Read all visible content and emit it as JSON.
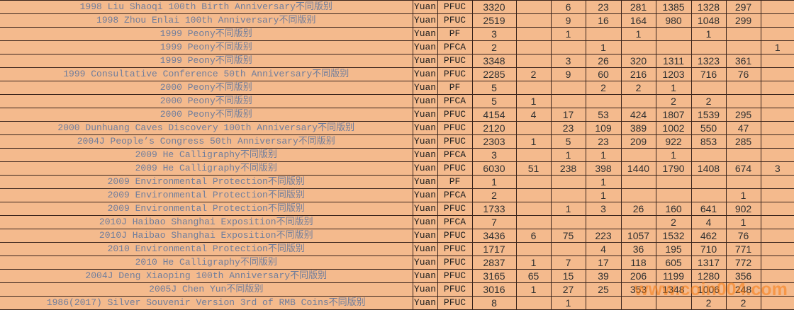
{
  "theme": {
    "background_color": "#F4BA8D",
    "grid_line_color": "#3A241C",
    "description_text_color": "#6F7D9C",
    "number_text_color": "#303030",
    "watermark_color": "#F77609"
  },
  "watermark": {
    "text": "www.coin004.com"
  },
  "table": {
    "column_roles": [
      "description",
      "currency",
      "grade",
      "v1",
      "v2",
      "v3",
      "v4",
      "v5",
      "v6",
      "v7",
      "v8",
      "v9"
    ],
    "rows": [
      {
        "description": "1998 Liu Shaoqi 100th Birth Anniversary不同版别",
        "currency": "Yuan",
        "grade": "PFUC",
        "values": [
          "3320",
          "",
          "6",
          "23",
          "281",
          "1385",
          "1328",
          "297",
          ""
        ]
      },
      {
        "description": "1998 Zhou Enlai 100th Anniversary不同版别",
        "currency": "Yuan",
        "grade": "PFUC",
        "values": [
          "2519",
          "",
          "9",
          "16",
          "164",
          "980",
          "1048",
          "299",
          ""
        ]
      },
      {
        "description": "1999 Peony不同版别",
        "currency": "Yuan",
        "grade": "PF",
        "values": [
          "3",
          "",
          "1",
          "",
          "1",
          "",
          "1",
          "",
          ""
        ]
      },
      {
        "description": "1999 Peony不同版别",
        "currency": "Yuan",
        "grade": "PFCA",
        "values": [
          "2",
          "",
          "",
          "1",
          "",
          "",
          "",
          "",
          "1"
        ]
      },
      {
        "description": "1999 Peony不同版别",
        "currency": "Yuan",
        "grade": "PFUC",
        "values": [
          "3348",
          "",
          "3",
          "26",
          "320",
          "1311",
          "1323",
          "361",
          ""
        ]
      },
      {
        "description": "1999 Consultative Conference 50th Anniversary不同版别",
        "currency": "Yuan",
        "grade": "PFUC",
        "values": [
          "2285",
          "2",
          "9",
          "60",
          "216",
          "1203",
          "716",
          "76",
          ""
        ]
      },
      {
        "description": "2000 Peony不同版别",
        "currency": "Yuan",
        "grade": "PF",
        "values": [
          "5",
          "",
          "",
          "2",
          "2",
          "1",
          "",
          "",
          ""
        ]
      },
      {
        "description": "2000 Peony不同版别",
        "currency": "Yuan",
        "grade": "PFCA",
        "values": [
          "5",
          "1",
          "",
          "",
          "",
          "2",
          "2",
          "",
          ""
        ]
      },
      {
        "description": "2000 Peony不同版别",
        "currency": "Yuan",
        "grade": "PFUC",
        "values": [
          "4154",
          "4",
          "17",
          "53",
          "424",
          "1807",
          "1539",
          "295",
          ""
        ]
      },
      {
        "description": "2000 Dunhuang Caves Discovery 100th Anniversary不同版别",
        "currency": "Yuan",
        "grade": "PFUC",
        "values": [
          "2120",
          "",
          "23",
          "109",
          "389",
          "1002",
          "550",
          "47",
          ""
        ]
      },
      {
        "description": "2004J People’s Congress 50th Anniversary不同版别",
        "currency": "Yuan",
        "grade": "PFUC",
        "values": [
          "2303",
          "1",
          "5",
          "23",
          "209",
          "922",
          "853",
          "285",
          ""
        ]
      },
      {
        "description": "2009 He Calligraphy不同版别",
        "currency": "Yuan",
        "grade": "PFCA",
        "values": [
          "3",
          "",
          "1",
          "1",
          "",
          "1",
          "",
          "",
          ""
        ]
      },
      {
        "description": "2009 He Calligraphy不同版别",
        "currency": "Yuan",
        "grade": "PFUC",
        "values": [
          "6030",
          "51",
          "238",
          "398",
          "1440",
          "1790",
          "1408",
          "674",
          "3"
        ]
      },
      {
        "description": "2009 Environmental Protection不同版别",
        "currency": "Yuan",
        "grade": "PF",
        "values": [
          "1",
          "",
          "",
          "1",
          "",
          "",
          "",
          "",
          ""
        ]
      },
      {
        "description": "2009 Environmental Protection不同版别",
        "currency": "Yuan",
        "grade": "PFCA",
        "values": [
          "2",
          "",
          "",
          "1",
          "",
          "",
          "",
          "1",
          ""
        ]
      },
      {
        "description": "2009 Environmental Protection不同版别",
        "currency": "Yuan",
        "grade": "PFUC",
        "values": [
          "1733",
          "",
          "1",
          "3",
          "26",
          "160",
          "641",
          "902",
          ""
        ]
      },
      {
        "description": "2010J Haibao Shanghai Exposition不同版别",
        "currency": "Yuan",
        "grade": "PFCA",
        "values": [
          "7",
          "",
          "",
          "",
          "",
          "2",
          "4",
          "1",
          ""
        ]
      },
      {
        "description": "2010J Haibao Shanghai Exposition不同版别",
        "currency": "Yuan",
        "grade": "PFUC",
        "values": [
          "3436",
          "6",
          "75",
          "223",
          "1057",
          "1532",
          "462",
          "76",
          ""
        ]
      },
      {
        "description": "2010 Environmental Protection不同版别",
        "currency": "Yuan",
        "grade": "PFUC",
        "values": [
          "1717",
          "",
          "",
          "4",
          "36",
          "195",
          "710",
          "771",
          ""
        ]
      },
      {
        "description": "2010 He Calligraphy不同版别",
        "currency": "Yuan",
        "grade": "PFUC",
        "values": [
          "2837",
          "1",
          "7",
          "17",
          "118",
          "605",
          "1317",
          "772",
          ""
        ]
      },
      {
        "description": "2004J Deng Xiaoping 100th Anniversary不同版别",
        "currency": "Yuan",
        "grade": "PFUC",
        "values": [
          "3165",
          "65",
          "15",
          "39",
          "206",
          "1199",
          "1280",
          "356",
          ""
        ]
      },
      {
        "description": "2005J Chen Yun不同版别",
        "currency": "Yuan",
        "grade": "PFUC",
        "values": [
          "3016",
          "1",
          "27",
          "25",
          "353",
          "1348",
          "1006",
          "248",
          ""
        ]
      },
      {
        "description": "1986(2017) Silver Souvenir Version 3rd of RMB Coins不同版别",
        "currency": "Yuan",
        "grade": "PFUC",
        "values": [
          "8",
          "",
          "1",
          "",
          "",
          "",
          "2",
          "2",
          ""
        ]
      }
    ]
  }
}
